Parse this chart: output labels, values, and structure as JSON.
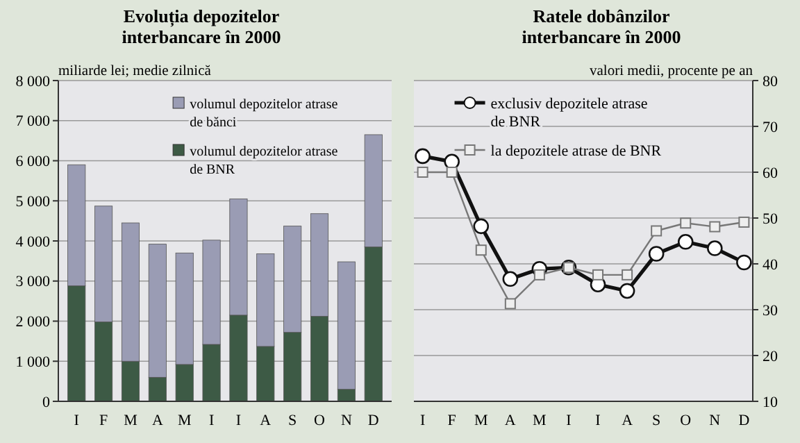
{
  "chart_data": [
    {
      "type": "bar",
      "title": "Evoluția depozitelor interbancare în 2000",
      "ylabel": "miliarde lei; medie zilnică",
      "categories": [
        "I",
        "F",
        "M",
        "A",
        "M",
        "I",
        "I",
        "A",
        "S",
        "O",
        "N",
        "D"
      ],
      "stacked": true,
      "series": [
        {
          "name": "volumul depozitelor atrase de BNR",
          "color": "#3d5a45",
          "values": [
            2880,
            1980,
            1000,
            600,
            920,
            1420,
            2150,
            1370,
            1720,
            2120,
            300,
            3850
          ]
        },
        {
          "name": "volumul depozitelor atrase de bănci",
          "color": "#9a9cb4",
          "values": [
            3020,
            2890,
            3450,
            3320,
            2780,
            2600,
            2900,
            2310,
            2650,
            2560,
            3180,
            2800
          ]
        }
      ],
      "ylim": [
        0,
        8000
      ],
      "yticks": [
        0,
        {
          "value": 1000,
          "label": "1 000"
        },
        {
          "value": 2000,
          "label": "2 000"
        },
        {
          "value": 3000,
          "label": "3 000"
        },
        {
          "value": 4000,
          "label": "4 000"
        },
        {
          "value": 5000,
          "label": "5 000"
        },
        {
          "value": 6000,
          "label": "6 000"
        },
        {
          "value": 7000,
          "label": "7 000"
        },
        {
          "value": 8000,
          "label": "8 000"
        }
      ],
      "grid": "y",
      "legend": "top right"
    },
    {
      "type": "line",
      "title": "Ratele dobânzilor interbancare în 2000",
      "ylabel": "valori medii, procente pe an",
      "categories": [
        "I",
        "F",
        "M",
        "A",
        "M",
        "I",
        "I",
        "A",
        "S",
        "O",
        "N",
        "D"
      ],
      "series": [
        {
          "name": "exclusiv depozitele atrase de BNR",
          "color": "#111111",
          "marker": "circle",
          "values": [
            63.5,
            62.3,
            48.2,
            36.7,
            38.9,
            39.2,
            35.5,
            34.1,
            42.2,
            44.8,
            43.4,
            40.3
          ]
        },
        {
          "name": "la depozitele atrase de BNR",
          "color": "#777777",
          "marker": "square",
          "values": [
            60,
            60,
            43,
            31.3,
            37.6,
            39.2,
            37.6,
            37.6,
            47.2,
            48.9,
            48.1,
            49.1
          ]
        }
      ],
      "ylim": [
        10,
        80
      ],
      "yticks": [
        10,
        20,
        30,
        40,
        50,
        60,
        70,
        80
      ],
      "grid": "y",
      "legend": "top"
    }
  ]
}
